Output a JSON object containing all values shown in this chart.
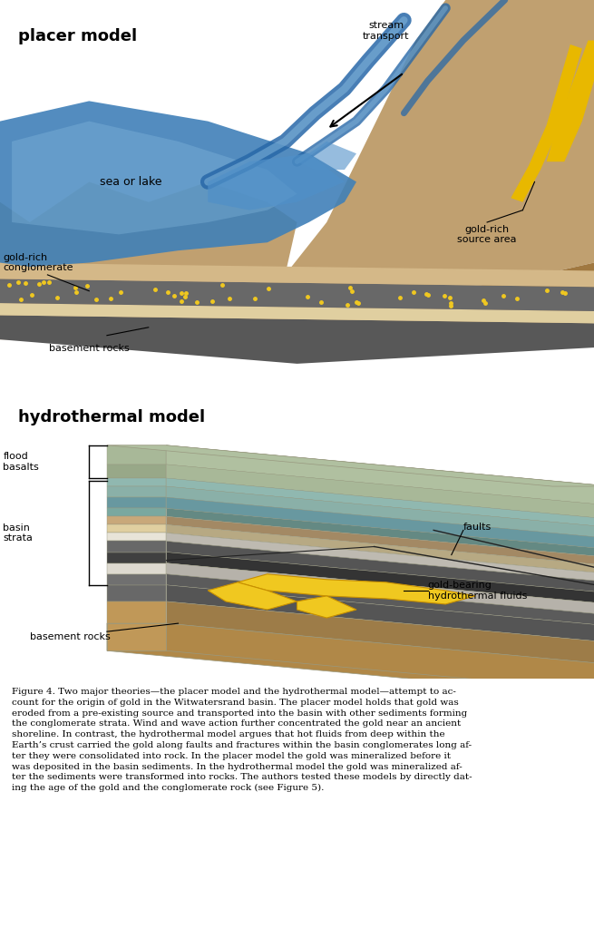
{
  "bg_color": "#ffffff",
  "title1": "placer model",
  "title2": "hydrothermal model",
  "caption": "Figure 4. Two major theories—the placer model and the hydrothermal model—attempt to ac-\ncount for the origin of gold in the Witwatersrand basin. The placer model holds that gold was\neroded from a pre-existing source and transported into the basin with other sediments forming\nthe conglomerate strata. Wind and wave action further concentrated the gold near an ancient\nshoreline. In contrast, the hydrothermal model argues that hot fluids from deep within the\nEarth’s crust carried the gold along faults and fractures within the basin conglomerates long af-\nter they were consolidated into rock. In the placer model the gold was mineralized before it\nwas deposited in the basin sediments. In the hydrothermal model the gold was mineralized af-\nter the sediments were transformed into rocks. The authors tested these models by directly dat-\ning the age of the gold and the conglomerate rock (see Figure 5).",
  "labels_placer": {
    "stream_transport": "stream\ntransport",
    "sea_or_lake": "sea or lake",
    "gold_rich_conglomerate": "gold-rich\nconglomerate",
    "basement_rocks": "basement rocks",
    "gold_rich_source": "gold-rich\nsource area"
  },
  "labels_hydrothermal": {
    "flood_basalts": "flood\nbasalts",
    "basin_strata": "basin\nstrata",
    "faults": "faults",
    "gold_bearing": "gold-bearing\nhydrothermal fluids",
    "basement_rocks": "basement rocks"
  },
  "colors": {
    "tan_rock": "#c8a87a",
    "tan_light": "#d4b888",
    "tan_dark": "#a07840",
    "tan_side": "#b89060",
    "blue_water": "#5090c8",
    "blue_water_light": "#88bce0",
    "blue_water_deep": "#2868a8",
    "blue_sea": "#4080b8",
    "gold": "#e8b800",
    "gold_bright": "#f0c820",
    "gold_dark": "#c89000",
    "gray_dark": "#585858",
    "gray_med": "#707070",
    "gray_conglomerate": "#686868",
    "cream": "#e0cfa0",
    "cream2": "#d8c890",
    "green_basalt": "#a8b898",
    "green_basalt_top": "#b0c0a0",
    "green2": "#98a888",
    "teal1": "#7aA8a0",
    "teal2": "#6898a0",
    "teal3": "#8ab0a8",
    "teal4": "#90b8b0",
    "brown_basement": "#c09858",
    "brown_side": "#b08848",
    "dark_layer": "#404040",
    "white_layer": "#dedad0",
    "off_white": "#e8e4d8",
    "mountain_tan": "#c0a070",
    "mountain_dark": "#b09060",
    "text_black": "#000000"
  }
}
